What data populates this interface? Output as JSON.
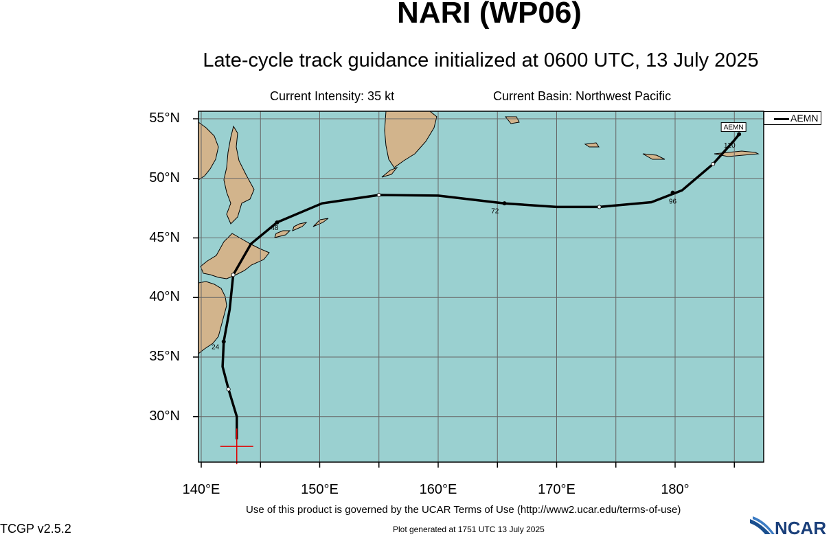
{
  "header": {
    "title": "NARI (WP06)",
    "subtitle": "Late-cycle track guidance initialized at 0600 UTC, 13 July 2025",
    "current_intensity": "Current Intensity: 35 kt",
    "current_basin": "Current Basin: Northwest Pacific"
  },
  "axes": {
    "lat_labels": [
      {
        "lat": 55,
        "label": "55°N"
      },
      {
        "lat": 50,
        "label": "50°N"
      },
      {
        "lat": 45,
        "label": "45°N"
      },
      {
        "lat": 40,
        "label": "40°N"
      },
      {
        "lat": 35,
        "label": "35°N"
      },
      {
        "lat": 30,
        "label": "30°N"
      }
    ],
    "lon_labels": [
      {
        "lon": 140,
        "label": "140°E"
      },
      {
        "lon": 150,
        "label": "150°E"
      },
      {
        "lon": 160,
        "label": "160°E"
      },
      {
        "lon": 170,
        "label": "170°E"
      },
      {
        "lon": 180,
        "label": "180°"
      }
    ],
    "lat_range": [
      26,
      56
    ],
    "lon_range": [
      140,
      188
    ],
    "grid_step_deg": 5
  },
  "legend": {
    "entries": [
      {
        "label": "AEMN",
        "color": "#000000"
      }
    ],
    "placement": "top-right, outside plot"
  },
  "track": {
    "model": "AEMN",
    "model_tag": "AEMN",
    "points": [
      {
        "lon": 143.0,
        "lat": 28.1
      },
      {
        "lon": 143.0,
        "lat": 30.0
      },
      {
        "lon": 142.3,
        "lat": 32.3
      },
      {
        "lon": 141.8,
        "lat": 34.2
      },
      {
        "lon": 141.9,
        "lat": 36.3
      },
      {
        "lon": 142.4,
        "lat": 39.0
      },
      {
        "lon": 142.7,
        "lat": 41.9
      },
      {
        "lon": 144.2,
        "lat": 44.5
      },
      {
        "lon": 146.4,
        "lat": 46.3
      },
      {
        "lon": 150.2,
        "lat": 47.9
      },
      {
        "lon": 155.0,
        "lat": 48.6
      },
      {
        "lon": 160.0,
        "lat": 48.55
      },
      {
        "lon": 165.6,
        "lat": 47.9
      },
      {
        "lon": 170.0,
        "lat": 47.6
      },
      {
        "lon": 173.6,
        "lat": 47.6
      },
      {
        "lon": 178.0,
        "lat": 48.0
      },
      {
        "lon": 180.6,
        "lat": 49.0
      },
      {
        "lon": 183.2,
        "lat": 51.2
      },
      {
        "lon": 185.0,
        "lat": 53.2
      },
      {
        "lon": 185.4,
        "lat": 53.7
      }
    ],
    "markers": [
      {
        "lon": 142.3,
        "lat": 32.3,
        "fill": "white"
      },
      {
        "lon": 141.9,
        "lat": 36.3,
        "fill": "black"
      },
      {
        "lon": 142.7,
        "lat": 41.9,
        "fill": "white"
      },
      {
        "lon": 146.4,
        "lat": 46.3,
        "fill": "black"
      },
      {
        "lon": 155.0,
        "lat": 48.6,
        "fill": "white"
      },
      {
        "lon": 165.6,
        "lat": 47.9,
        "fill": "black"
      },
      {
        "lon": 173.6,
        "lat": 47.6,
        "fill": "white"
      },
      {
        "lon": 179.8,
        "lat": 48.8,
        "fill": "black"
      },
      {
        "lon": 183.2,
        "lat": 51.2,
        "fill": "white"
      },
      {
        "lon": 185.4,
        "lat": 53.7,
        "fill": "black"
      }
    ],
    "hour_labels": [
      {
        "lon": 141.2,
        "lat": 35.9,
        "label": "24"
      },
      {
        "lon": 146.2,
        "lat": 45.9,
        "label": "48"
      },
      {
        "lon": 164.8,
        "lat": 47.3,
        "label": "72"
      },
      {
        "lon": 179.8,
        "lat": 48.1,
        "label": "96"
      },
      {
        "lon": 184.6,
        "lat": 52.8,
        "label": "120"
      }
    ],
    "initial_position": {
      "lon": 143.0,
      "lat": 27.5
    }
  },
  "colors": {
    "ocean": "#9ad0d0",
    "land": "#d2b48c",
    "grid": "#666666",
    "track": "#000000",
    "initial_marker": "#e00000"
  },
  "footer": {
    "terms": "Use of this product is governed by the UCAR Terms of Use (http://www2.ucar.edu/terms-of-use)",
    "generated": "Plot generated at 1751 UTC   13 July 2025",
    "version": "TCGP v2.5.2",
    "logo_text": "NCAR"
  }
}
